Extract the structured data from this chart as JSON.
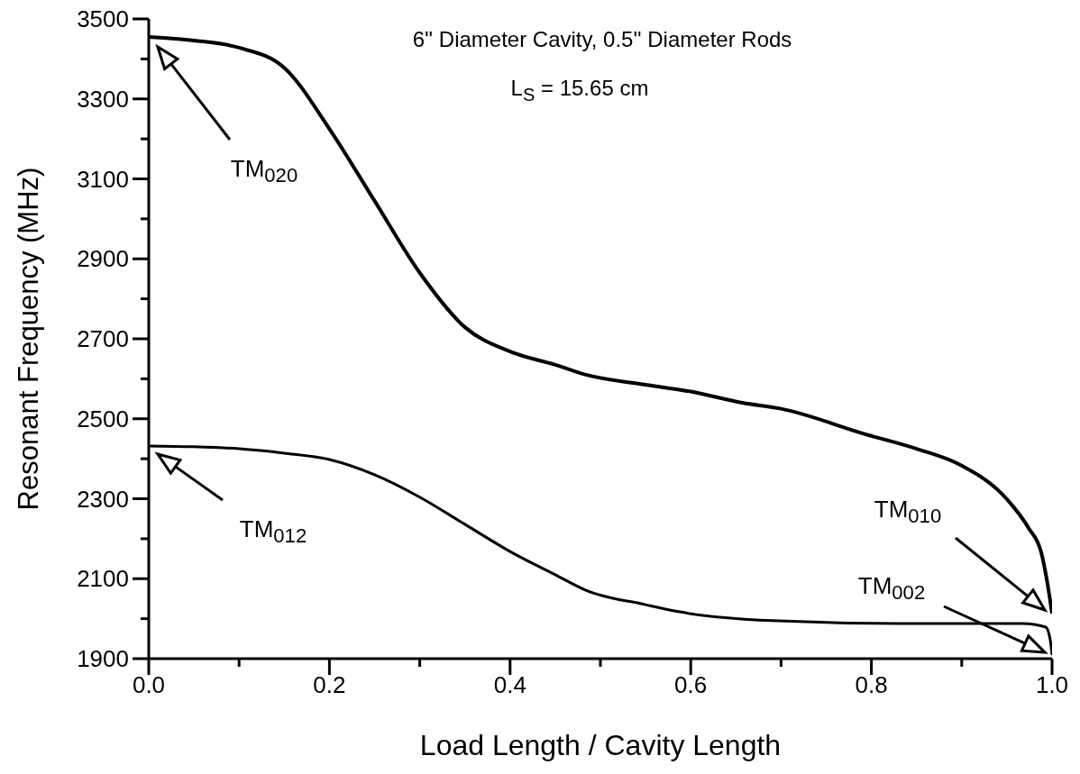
{
  "chart_data": {
    "type": "line",
    "title": "6'' Diameter Cavity, 0.5'' Diameter Rods",
    "subtitle": "L$_{S}$ = 15.65 cm",
    "xlabel": "Load Length / Cavity Length",
    "ylabel": "Resonant Frequency (MHz)",
    "series": [
      {
        "color": "#000000",
        "x": [
          0,
          0.05,
          0.1,
          0.15,
          0.2,
          0.25,
          0.3,
          0.35,
          0.4,
          0.45,
          0.484,
          0.55,
          0.6,
          0.657,
          0.7,
          0.794,
          0.85,
          0.898,
          0.95,
          0.974,
          0.988,
          0.995,
          1.0
        ],
        "values": [
          3455,
          3446,
          3428,
          3378,
          3225,
          3045,
          2865,
          2729,
          2668,
          2635,
          2610,
          2585,
          2568,
          2540,
          2525,
          2461,
          2425,
          2385,
          2299,
          2227,
          2166,
          2087,
          2013
        ]
      },
      {
        "color": "#000000",
        "x": [
          0,
          0.05,
          0.1,
          0.15,
          0.2,
          0.25,
          0.3,
          0.35,
          0.4,
          0.45,
          0.484,
          0.55,
          0.588,
          0.69,
          0.83,
          0.967,
          0.993,
          0.998,
          1.0
        ],
        "values": [
          2432,
          2430,
          2425,
          2414,
          2398,
          2360,
          2304,
          2236,
          2168,
          2110,
          2071,
          2035,
          2017,
          1995,
          1988,
          1988,
          1979,
          1947,
          1909
        ]
      }
    ],
    "xlim": [
      0,
      1
    ],
    "xticks": [
      {
        "value": 0,
        "label": "0.0"
      },
      {
        "value": 0.1,
        "label": null
      },
      {
        "value": 0.2,
        "label": "0.2"
      },
      {
        "value": 0.3,
        "label": null
      },
      {
        "value": 0.4,
        "label": "0.4"
      },
      {
        "value": 0.5,
        "label": null
      },
      {
        "value": 0.6,
        "label": "0.6"
      },
      {
        "value": 0.7,
        "label": null
      },
      {
        "value": 0.8,
        "label": "0.8"
      },
      {
        "value": 0.9,
        "label": null
      },
      {
        "value": 1,
        "label": "1.0"
      }
    ],
    "ylim": [
      1900,
      3500
    ],
    "yticks": [
      1900,
      {
        "value": 2000,
        "label": null
      },
      2100,
      {
        "value": 2200,
        "label": null
      },
      2300,
      {
        "value": 2400,
        "label": null
      },
      2500,
      {
        "value": 2600,
        "label": null
      },
      2700,
      {
        "value": 2800,
        "label": null
      },
      2900,
      {
        "value": 3000,
        "label": null
      },
      3100,
      {
        "value": 3200,
        "label": null
      },
      3300,
      {
        "value": 3400,
        "label": null
      },
      3500
    ],
    "line_style": "solid",
    "annotations": [
      "TM$_{020}$",
      "TM$_{012}$",
      "TM$_{010}$",
      "TM$_{002}$"
    ]
  }
}
